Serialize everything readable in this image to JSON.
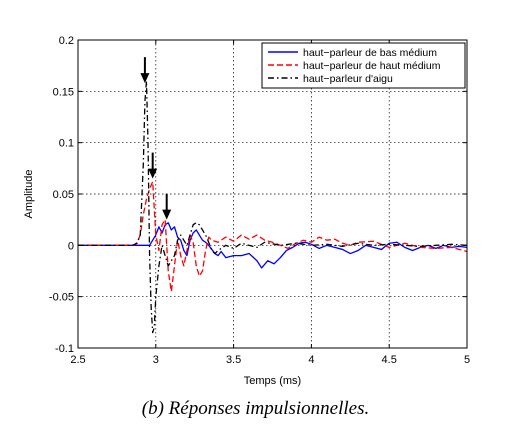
{
  "caption": "(b) Réponses impulsionnelles.",
  "chart_data": {
    "type": "line",
    "xlabel": "Temps (ms)",
    "ylabel": "Amplitude",
    "xlim": [
      2.5,
      5
    ],
    "ylim": [
      -0.1,
      0.2
    ],
    "xticks": [
      2.5,
      3,
      3.5,
      4,
      4.5,
      5
    ],
    "xtick_labels": [
      "2.5",
      "3",
      "3.5",
      "4",
      "4.5",
      "5"
    ],
    "yticks": [
      -0.1,
      -0.05,
      0,
      0.05,
      0.1,
      0.15,
      0.2
    ],
    "ytick_labels": [
      "-0.1",
      "-0.05",
      "0",
      "0.05",
      "0.1",
      "0.15",
      "0.2"
    ],
    "grid": true,
    "legend_position": "top-right",
    "series": [
      {
        "name": "haut−parleur de bas médium",
        "color": "#0000ff",
        "dash": "solid",
        "x": [
          2.5,
          2.85,
          2.96,
          2.98,
          3.0,
          3.02,
          3.04,
          3.06,
          3.08,
          3.1,
          3.12,
          3.14,
          3.16,
          3.18,
          3.2,
          3.22,
          3.24,
          3.26,
          3.28,
          3.3,
          3.32,
          3.34,
          3.36,
          3.38,
          3.4,
          3.42,
          3.45,
          3.5,
          3.55,
          3.6,
          3.65,
          3.68,
          3.72,
          3.76,
          3.8,
          3.84,
          3.88,
          3.92,
          3.96,
          4.0,
          4.05,
          4.1,
          4.15,
          4.2,
          4.25,
          4.3,
          4.35,
          4.4,
          4.45,
          4.5,
          4.55,
          4.6,
          4.65,
          4.7,
          4.75,
          4.8,
          4.85,
          4.9,
          4.95,
          5.0
        ],
        "y": [
          0,
          0,
          0,
          0.005,
          0.01,
          0.018,
          0.012,
          0.02,
          0.022,
          0.015,
          0.018,
          0.008,
          0.005,
          -0.005,
          -0.01,
          0.005,
          0.012,
          0.015,
          0.01,
          0.005,
          0.003,
          0,
          -0.004,
          -0.008,
          -0.01,
          -0.006,
          -0.012,
          -0.01,
          -0.01,
          -0.008,
          -0.015,
          -0.022,
          -0.015,
          -0.018,
          -0.012,
          -0.005,
          -0.002,
          0.002,
          0.003,
          0.001,
          -0.003,
          0,
          -0.002,
          -0.004,
          -0.008,
          -0.005,
          0,
          -0.002,
          -0.004,
          0.002,
          0.003,
          -0.002,
          -0.005,
          -0.002,
          0,
          -0.003,
          0,
          -0.002,
          -0.001,
          -0.002
        ]
      },
      {
        "name": "haut−parleur de haut médium",
        "color": "#ff0000",
        "dash": "dashed",
        "x": [
          2.5,
          2.86,
          2.88,
          2.9,
          2.92,
          2.94,
          2.96,
          2.98,
          3.0,
          3.02,
          3.04,
          3.06,
          3.08,
          3.1,
          3.12,
          3.14,
          3.16,
          3.18,
          3.2,
          3.22,
          3.24,
          3.26,
          3.28,
          3.3,
          3.32,
          3.34,
          3.36,
          3.4,
          3.45,
          3.5,
          3.55,
          3.6,
          3.65,
          3.7,
          3.75,
          3.8,
          3.85,
          3.9,
          3.95,
          4.0,
          4.05,
          4.1,
          4.15,
          4.2,
          4.25,
          4.3,
          4.4,
          4.5,
          4.6,
          4.7,
          4.8,
          4.9,
          5.0
        ],
        "y": [
          0,
          0,
          0.003,
          0.01,
          0.03,
          0.045,
          0.055,
          0.062,
          0.01,
          -0.005,
          0.02,
          0.025,
          -0.025,
          -0.045,
          -0.02,
          0.005,
          -0.01,
          -0.02,
          -0.005,
          0.01,
          0.003,
          -0.02,
          -0.03,
          -0.025,
          -0.005,
          0.008,
          0.005,
          0.003,
          0.008,
          0.004,
          0.01,
          0.006,
          0.01,
          0.005,
          0.003,
          0,
          -0.003,
          0.002,
          0.005,
          0.003,
          0.008,
          0.005,
          0.006,
          0.002,
          0,
          0.003,
          0.004,
          -0.002,
          0.002,
          -0.002,
          -0.003,
          -0.002,
          -0.006
        ]
      },
      {
        "name": "haut−parleur d'aigu",
        "color": "#000000",
        "dash": "dashdot",
        "x": [
          2.5,
          2.85,
          2.88,
          2.9,
          2.92,
          2.93,
          2.94,
          2.95,
          2.96,
          2.97,
          2.98,
          2.99,
          3.0,
          3.02,
          3.04,
          3.06,
          3.08,
          3.1,
          3.12,
          3.14,
          3.16,
          3.18,
          3.2,
          3.22,
          3.24,
          3.26,
          3.28,
          3.3,
          3.32,
          3.34,
          3.36,
          3.38,
          3.4,
          3.45,
          3.5,
          3.55,
          3.6,
          3.65,
          3.7,
          3.8,
          3.9,
          4.0,
          4.1,
          4.2,
          4.3,
          4.4,
          4.5,
          4.6,
          4.7,
          4.8,
          4.9,
          5.0
        ],
        "y": [
          0,
          0,
          0.002,
          0.01,
          0.08,
          0.14,
          0.16,
          0.1,
          -0.01,
          -0.06,
          -0.085,
          -0.08,
          -0.05,
          -0.02,
          0,
          -0.01,
          -0.02,
          -0.015,
          -0.01,
          0.005,
          0.01,
          0.005,
          0,
          0.01,
          0.02,
          0.022,
          0.02,
          0.015,
          0.01,
          0.003,
          -0.005,
          -0.008,
          -0.005,
          0,
          -0.003,
          0.002,
          0,
          -0.002,
          0.003,
          0,
          0.002,
          0,
          0.001,
          -0.001,
          0.002,
          0,
          0.001,
          0,
          -0.001,
          0,
          0.001,
          0
        ]
      }
    ],
    "arrows": [
      {
        "x": 2.93,
        "y": 0.158
      },
      {
        "x": 2.98,
        "y": 0.065
      },
      {
        "x": 3.07,
        "y": 0.025
      }
    ]
  }
}
